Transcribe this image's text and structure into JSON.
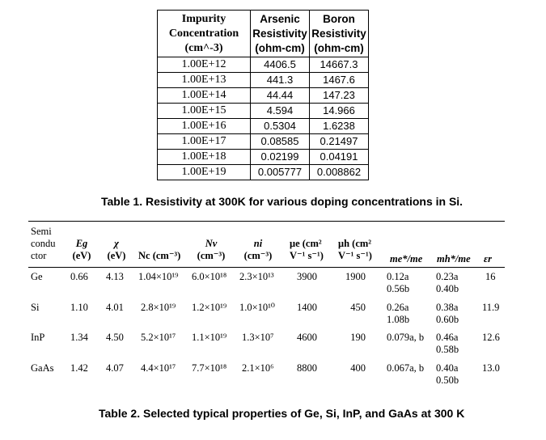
{
  "table1": {
    "headers": [
      "Impurity Concentration (cm^-3)",
      "Arsenic Resistivity (ohm-cm)",
      "Boron Resistivity (ohm-cm)"
    ],
    "header_lines": [
      [
        "Impurity",
        "Concentration",
        "(cm^-3)"
      ],
      [
        "Arsenic",
        "Resistivity",
        "(ohm-cm)"
      ],
      [
        "Boron",
        "Resistivity",
        "(ohm-cm)"
      ]
    ],
    "rows": [
      [
        "1.00E+12",
        "4406.5",
        "14667.3"
      ],
      [
        "1.00E+13",
        "441.3",
        "1467.6"
      ],
      [
        "1.00E+14",
        "44.44",
        "147.23"
      ],
      [
        "1.00E+15",
        "4.594",
        "14.966"
      ],
      [
        "1.00E+16",
        "0.5304",
        "1.6238"
      ],
      [
        "1.00E+17",
        "0.08585",
        "0.21497"
      ],
      [
        "1.00E+18",
        "0.02199",
        "0.04191"
      ],
      [
        "1.00E+19",
        "0.005777",
        "0.008862"
      ]
    ],
    "caption": "Table 1. Resistivity at 300K for various doping concentrations in Si."
  },
  "table2": {
    "headers": {
      "semiconductor": [
        "Semi",
        "condu",
        "ctor"
      ],
      "eg": [
        "Eg",
        "(eV)"
      ],
      "chi": [
        "χ",
        "(eV)"
      ],
      "nc": [
        "Nc (cm⁻³)"
      ],
      "nv": [
        "Nv",
        "(cm⁻³)"
      ],
      "ni": [
        "ni",
        "(cm⁻³)"
      ],
      "mue": [
        "μe (cm²",
        "V⁻¹ s⁻¹)"
      ],
      "muh": [
        "μh (cm²",
        "V⁻¹ s⁻¹)"
      ],
      "me": [
        "me*/me"
      ],
      "mh": [
        "mh*/me"
      ],
      "er": [
        "εr"
      ]
    },
    "rows": [
      {
        "name": "Ge",
        "eg": "0.66",
        "chi": "4.13",
        "nc": "1.04×10¹⁹",
        "nv": "6.0×10¹⁸",
        "ni": "2.3×10¹³",
        "mue": "3900",
        "muh": "1900",
        "me": [
          "0.12a",
          "0.56b"
        ],
        "mh": [
          "0.23a",
          "0.40b"
        ],
        "er": "16"
      },
      {
        "name": "Si",
        "eg": "1.10",
        "chi": "4.01",
        "nc": "2.8×10¹⁹",
        "nv": "1.2×10¹⁹",
        "ni": "1.0×10¹⁰",
        "mue": "1400",
        "muh": "450",
        "me": [
          "0.26a",
          "1.08b"
        ],
        "mh": [
          "0.38a",
          "0.60b"
        ],
        "er": "11.9"
      },
      {
        "name": "InP",
        "eg": "1.34",
        "chi": "4.50",
        "nc": "5.2×10¹⁷",
        "nv": "1.1×10¹⁹",
        "ni": "1.3×10⁷",
        "mue": "4600",
        "muh": "190",
        "me": [
          "0.079a, b"
        ],
        "mh": [
          "0.46a",
          "0.58b"
        ],
        "er": "12.6"
      },
      {
        "name": "GaAs",
        "eg": "1.42",
        "chi": "4.07",
        "nc": "4.4×10¹⁷",
        "nv": "7.7×10¹⁸",
        "ni": "2.1×10⁶",
        "mue": "8800",
        "muh": "400",
        "me": [
          "0.067a, b"
        ],
        "mh": [
          "0.40a",
          "0.50b"
        ],
        "er": "13.0"
      }
    ],
    "caption": "Table 2. Selected typical properties of Ge, Si, InP, and GaAs at 300 K"
  }
}
